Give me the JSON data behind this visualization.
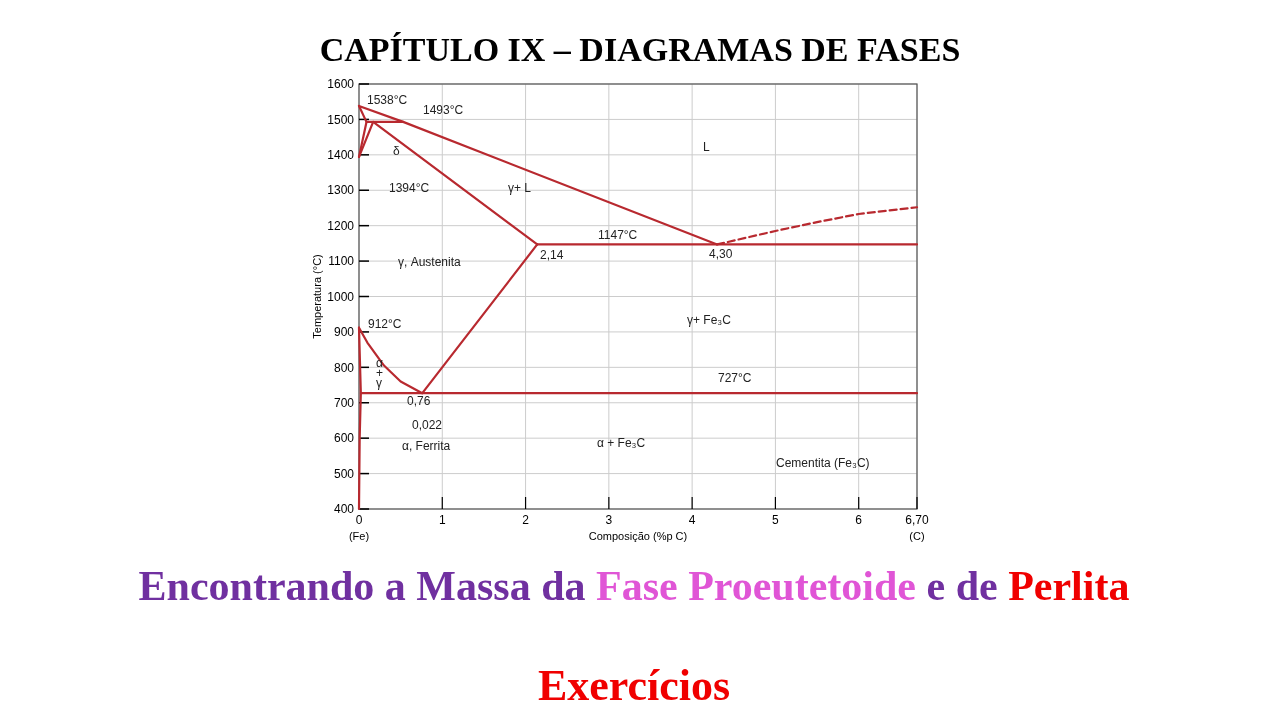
{
  "chart_data": {
    "type": "line",
    "title": "CAPÍTULO IX –  DIAGRAMAS DE FASES",
    "subtitle": "Encontrando a Massa da Fase Proeutetoide e de Perlita",
    "xlabel": "Composição (%p C)",
    "ylabel": "Temperatura (°C)",
    "xlim": [
      0,
      6.7
    ],
    "xticks": [
      0,
      1,
      2,
      3,
      4,
      5,
      6,
      {
        "value": 6.7,
        "label": "6,70"
      }
    ],
    "ylim": [
      400,
      1600
    ],
    "yticks": [
      400,
      500,
      600,
      700,
      800,
      900,
      1000,
      1100,
      1200,
      1300,
      1400,
      1500,
      1600
    ],
    "grid": true,
    "marker": "none",
    "line_style": "solid",
    "series": [
      {
        "color": "#b8292f",
        "x": [
          0,
          0.53,
          4.3
        ],
        "values": [
          1538,
          1493,
          1147
        ]
      },
      {
        "color": "#b8292f",
        "x": [
          0.09,
          0.53
        ],
        "values": [
          1493,
          1493
        ]
      },
      {
        "color": "#b8292f",
        "x": [
          0,
          0.09,
          0
        ],
        "values": [
          1538,
          1493,
          1394
        ]
      },
      {
        "color": "#b8292f",
        "x": [
          0,
          0.17
        ],
        "values": [
          1394,
          1493
        ]
      },
      {
        "color": "#b8292f",
        "x": [
          0.17,
          2.14
        ],
        "values": [
          1493,
          1147
        ]
      },
      {
        "color": "#b8292f",
        "x": [
          2.14,
          6.7
        ],
        "values": [
          1147,
          1147
        ]
      },
      {
        "color": "#b8292f",
        "x": [
          0.76,
          2.14
        ],
        "values": [
          727,
          1147
        ]
      },
      {
        "color": "#b8292f",
        "x": [
          0,
          0.1,
          0.3,
          0.5,
          0.76
        ],
        "values": [
          912,
          870,
          805,
          760,
          727
        ]
      },
      {
        "color": "#b8292f",
        "x": [
          0.022,
          6.7
        ],
        "values": [
          727,
          727
        ]
      },
      {
        "color": "#b8292f",
        "x": [
          0,
          0.022,
          0.008,
          0
        ],
        "values": [
          912,
          727,
          600,
          400
        ]
      },
      {
        "color": "#b8292f",
        "x": [
          4.3,
          5,
          5.5,
          6,
          6.7
        ],
        "values": [
          1147,
          1185,
          1210,
          1233,
          1252
        ],
        "line_style": "dashed"
      }
    ],
    "annotations": [
      "1538°C",
      "1493°C",
      "δ",
      "1394°C",
      "L",
      "γ+ L",
      "1147°C",
      "2,14",
      "4,30",
      "γ, Austenita",
      "912°C",
      "γ+ Fe₃C",
      "α",
      "+",
      "γ",
      "727°C",
      "0,76",
      "0,022",
      "α, Ferrita",
      "α + Fe₃C",
      "Cementita (Fe₃C)",
      "(Fe)",
      "(C)",
      "Exercícios"
    ]
  }
}
